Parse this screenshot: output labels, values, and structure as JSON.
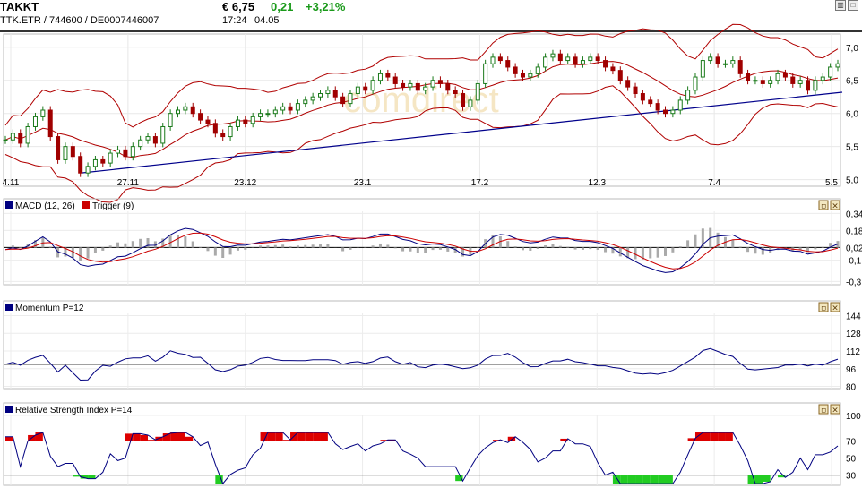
{
  "header": {
    "name": "TAKKT",
    "price": "€ 6,75",
    "change": "0,21",
    "change_pct": "+3,21%",
    "ids": "TTK.ETR  /  744600  /  DE0007446007",
    "time": "17:24",
    "date": "04.05",
    "watermark": "comdirect"
  },
  "toolbar_icons": [
    "bar-chart-icon",
    "window-icon"
  ],
  "panel_icons": [
    "settings-icon",
    "close-icon"
  ],
  "chart_data": [
    {
      "type": "candlestick",
      "name": "price",
      "x_ticks": [
        "4.11",
        "27.11",
        "23.12",
        "23.1",
        "17.2",
        "12.3",
        "7.4",
        "5.5"
      ],
      "y_ticks": [
        "7,0",
        "6,5",
        "6,0",
        "5,5",
        "5,0"
      ],
      "ylim": [
        4.9,
        7.2
      ],
      "overlays": [
        "Bollinger Bands",
        "Trendline"
      ],
      "close_estimates": [
        5.6,
        5.7,
        5.55,
        5.8,
        5.95,
        6.05,
        5.65,
        5.3,
        5.5,
        5.35,
        5.1,
        5.2,
        5.3,
        5.25,
        5.4,
        5.45,
        5.35,
        5.5,
        5.6,
        5.65,
        5.55,
        5.8,
        6.0,
        6.05,
        6.1,
        6.0,
        5.9,
        5.85,
        5.7,
        5.65,
        5.8,
        5.9,
        5.85,
        5.95,
        6.0,
        6.0,
        6.05,
        6.1,
        6.05,
        6.15,
        6.2,
        6.25,
        6.3,
        6.35,
        6.25,
        6.15,
        6.3,
        6.4,
        6.35,
        6.5,
        6.6,
        6.55,
        6.45,
        6.4,
        6.45,
        6.35,
        6.4,
        6.5,
        6.45,
        6.35,
        6.3,
        6.1,
        6.2,
        6.45,
        6.75,
        6.85,
        6.8,
        6.7,
        6.6,
        6.55,
        6.6,
        6.7,
        6.85,
        6.9,
        6.8,
        6.85,
        6.75,
        6.8,
        6.85,
        6.8,
        6.7,
        6.65,
        6.5,
        6.4,
        6.3,
        6.2,
        6.15,
        6.05,
        6.0,
        6.05,
        6.2,
        6.35,
        6.55,
        6.8,
        6.85,
        6.75,
        6.75,
        6.8,
        6.6,
        6.5,
        6.5,
        6.45,
        6.5,
        6.6,
        6.55,
        6.45,
        6.5,
        6.35,
        6.5,
        6.55,
        6.7,
        6.75
      ]
    },
    {
      "type": "line",
      "title": "MACD (12, 26)",
      "series": [
        {
          "name": "MACD (12, 26)",
          "color": "#000080"
        },
        {
          "name": "Trigger (9)",
          "color": "#cc0000"
        }
      ],
      "y_ticks": [
        "0,34",
        "0,18",
        "0,02",
        "-0,1",
        "-0,3"
      ],
      "ylim": [
        -0.33,
        0.36
      ]
    },
    {
      "type": "line",
      "title": "Momentum P=12",
      "y_ticks": [
        "144",
        "128",
        "112",
        "96",
        "80"
      ],
      "ylim": [
        78,
        146
      ],
      "reference": 100
    },
    {
      "type": "line",
      "title": "Relative Strength Index P=14",
      "y_ticks": [
        "100",
        "70",
        "50",
        "30"
      ],
      "ylim": [
        18,
        100
      ],
      "levels": [
        70,
        50,
        30
      ]
    }
  ]
}
